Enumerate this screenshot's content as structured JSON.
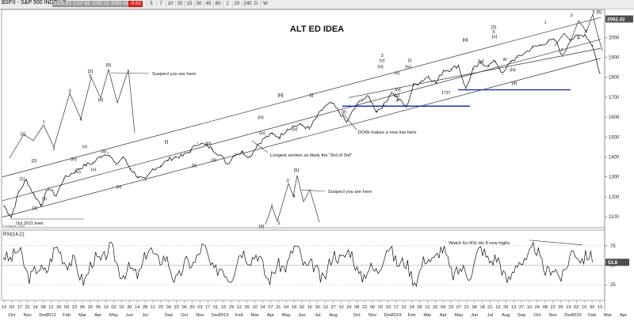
{
  "toolbar": {
    "title": "$SPX - S&P 500 INDEX,D",
    "cells": [
      "5",
      "7",
      "10",
      "20",
      "15",
      "30",
      "45",
      "60",
      "1",
      "20",
      "240",
      "D",
      "W"
    ],
    "badges": [
      {
        "text": "2102.83",
        "color": "#9a9a9a"
      },
      {
        "text": "2107.65",
        "color": "#9a9a9a"
      },
      {
        "text": "2092.33",
        "color": "#9a9a9a"
      },
      {
        "text": "2092.43",
        "color": "#9a9a9a"
      },
      {
        "text": "-9.63",
        "color": "#e01a1a"
      }
    ]
  },
  "colors": {
    "price_line": "#1c1c1c",
    "channel": "#333333",
    "blue_level": "#1a2fbf",
    "last_price_badge": "#4d4d4d"
  },
  "chart_data": [
    {
      "type": "line",
      "title": "ALT ED IDEA",
      "y_ticks": [
        "2000",
        "1900",
        "1800",
        "1700",
        "1600",
        "1500",
        "1400",
        "1300",
        "1200",
        "1100"
      ],
      "ylim": [
        1045,
        2140
      ],
      "last_price": "2092.43",
      "x_ticks": [
        "19",
        "03",
        "17",
        "31",
        "14",
        "28",
        "12",
        "26",
        "09",
        "23",
        "06",
        "20",
        "05",
        "19",
        "02",
        "16",
        "30",
        "14",
        "28",
        "11",
        "25",
        "09",
        "23",
        "06",
        "20",
        "03",
        "17",
        "01",
        "15",
        "29",
        "12",
        "26",
        "10",
        "24",
        "07",
        "21",
        "04",
        "18",
        "02",
        "16",
        "30",
        "13",
        "27",
        "10",
        "24",
        "08",
        "22",
        "06",
        "20",
        "03",
        "17",
        "31",
        "14",
        "28",
        "12",
        "26",
        "09",
        "23",
        "07",
        "21",
        "04",
        "18",
        "01",
        "15",
        "29",
        "13",
        "27",
        "10",
        "24",
        "08",
        "22",
        "05",
        "19",
        "02",
        "16",
        "30",
        "13"
      ],
      "x_months": [
        {
          "i": 1,
          "label": "Oct"
        },
        {
          "i": 3,
          "label": "Nov"
        },
        {
          "i": 5,
          "label": "Dec"
        },
        {
          "i": 6,
          "label": "2012"
        },
        {
          "i": 8,
          "label": "Feb"
        },
        {
          "i": 10,
          "label": "Mar"
        },
        {
          "i": 12,
          "label": "Apr"
        },
        {
          "i": 14,
          "label": "May"
        },
        {
          "i": 16,
          "label": "Jun"
        },
        {
          "i": 18,
          "label": "Jul"
        },
        {
          "i": 21,
          "label": "Sep"
        },
        {
          "i": 23,
          "label": "Oct"
        },
        {
          "i": 25,
          "label": "Nov"
        },
        {
          "i": 27,
          "label": "Dec"
        },
        {
          "i": 28,
          "label": "2013"
        },
        {
          "i": 30,
          "label": "Feb"
        },
        {
          "i": 32,
          "label": "Mar"
        },
        {
          "i": 34,
          "label": "Apr"
        },
        {
          "i": 36,
          "label": "May"
        },
        {
          "i": 38,
          "label": "Jun"
        },
        {
          "i": 40,
          "label": "Jul"
        },
        {
          "i": 42,
          "label": "Aug"
        },
        {
          "i": 45,
          "label": "Oct"
        },
        {
          "i": 47,
          "label": "Nov"
        },
        {
          "i": 49,
          "label": "Dec"
        },
        {
          "i": 50,
          "label": "2014"
        },
        {
          "i": 52,
          "label": "Feb"
        },
        {
          "i": 54,
          "label": "Mar"
        },
        {
          "i": 56,
          "label": "Apr"
        },
        {
          "i": 58,
          "label": "May"
        },
        {
          "i": 60,
          "label": "Jun"
        },
        {
          "i": 62,
          "label": "Jul"
        },
        {
          "i": 64,
          "label": "Aug"
        },
        {
          "i": 66,
          "label": "Sep"
        },
        {
          "i": 68,
          "label": "Oct"
        },
        {
          "i": 70,
          "label": "Nov"
        },
        {
          "i": 72,
          "label": "Dec"
        },
        {
          "i": 73,
          "label": "2015"
        },
        {
          "i": 75,
          "label": "Feb"
        },
        {
          "i": 77,
          "label": "Mar"
        },
        {
          "i": 79,
          "label": "Apr"
        }
      ],
      "x_dates": [
        "2011-09-19",
        "2011-10-03",
        "2011-10-17",
        "2011-10-31",
        "2011-11-14",
        "2011-11-28",
        "2011-12-12",
        "2011-12-26",
        "2012-01-09",
        "2012-01-23",
        "2012-02-06",
        "2012-02-20",
        "2012-03-05",
        "2012-03-19",
        "2012-04-02",
        "2012-04-16",
        "2012-04-30",
        "2012-05-14",
        "2012-05-28",
        "2012-06-11",
        "2012-06-25",
        "2012-07-09",
        "2012-07-23",
        "2012-08-06",
        "2012-08-20",
        "2012-09-03",
        "2012-09-17",
        "2012-10-01",
        "2012-10-15",
        "2012-10-29",
        "2012-11-12",
        "2012-11-26",
        "2012-12-10",
        "2012-12-24",
        "2013-01-07",
        "2013-01-21",
        "2013-02-04",
        "2013-02-18",
        "2013-03-04",
        "2013-03-18",
        "2013-04-01",
        "2013-04-15",
        "2013-04-29",
        "2013-05-13",
        "2013-05-27",
        "2013-06-10",
        "2013-06-24",
        "2013-07-08",
        "2013-07-22",
        "2013-08-05",
        "2013-08-19",
        "2013-09-02",
        "2013-09-16",
        "2013-09-30",
        "2013-10-14",
        "2013-10-28",
        "2013-11-11",
        "2013-11-25",
        "2013-12-09",
        "2013-12-23",
        "2014-01-06",
        "2014-01-20",
        "2014-02-03",
        "2014-02-17",
        "2014-03-03",
        "2014-03-17",
        "2014-03-31",
        "2014-04-14",
        "2014-04-28",
        "2014-05-12",
        "2014-05-26",
        "2014-06-09",
        "2014-06-23",
        "2014-07-07",
        "2014-07-21",
        "2014-08-04",
        "2014-08-18",
        "2014-09-01",
        "2014-09-15",
        "2014-09-29",
        "2014-10-13"
      ],
      "series": [
        {
          "values": [
            [
              "2011-09-19",
              1155
            ],
            [
              "2011-10-03",
              1099
            ],
            [
              "2011-10-17",
              1225
            ],
            [
              "2011-10-31",
              1285
            ],
            [
              "2011-11-14",
              1212
            ],
            [
              "2011-11-28",
              1160
            ],
            [
              "2011-12-12",
              1245
            ],
            [
              "2011-12-26",
              1205
            ],
            [
              "2012-01-09",
              1290
            ],
            [
              "2012-01-23",
              1315
            ],
            [
              "2012-02-06",
              1340
            ],
            [
              "2012-02-20",
              1360
            ],
            [
              "2012-03-05",
              1370
            ],
            [
              "2012-03-19",
              1405
            ],
            [
              "2012-04-02",
              1420
            ],
            [
              "2012-04-16",
              1360
            ],
            [
              "2012-04-30",
              1400
            ],
            [
              "2012-05-14",
              1340
            ],
            [
              "2012-05-28",
              1300
            ],
            [
              "2012-06-11",
              1282
            ],
            [
              "2012-06-25",
              1340
            ],
            [
              "2012-07-09",
              1355
            ],
            [
              "2012-07-23",
              1385
            ],
            [
              "2012-08-06",
              1400
            ],
            [
              "2012-08-20",
              1405
            ],
            [
              "2012-09-03",
              1430
            ],
            [
              "2012-09-17",
              1470
            ],
            [
              "2012-10-01",
              1460
            ],
            [
              "2012-10-15",
              1440
            ],
            [
              "2012-10-29",
              1410
            ],
            [
              "2012-11-12",
              1365
            ],
            [
              "2012-11-26",
              1415
            ],
            [
              "2012-12-10",
              1425
            ],
            [
              "2012-12-24",
              1400
            ],
            [
              "2013-01-07",
              1460
            ],
            [
              "2013-01-21",
              1495
            ],
            [
              "2013-02-04",
              1515
            ],
            [
              "2013-02-18",
              1500
            ],
            [
              "2013-03-04",
              1540
            ],
            [
              "2013-03-18",
              1555
            ],
            [
              "2013-04-01",
              1560
            ],
            [
              "2013-04-15",
              1540
            ],
            [
              "2013-04-29",
              1600
            ],
            [
              "2013-05-13",
              1650
            ],
            [
              "2013-05-27",
              1670
            ],
            [
              "2013-06-10",
              1625
            ],
            [
              "2013-06-24",
              1573
            ],
            [
              "2013-07-08",
              1640
            ],
            [
              "2013-07-22",
              1690
            ],
            [
              "2013-08-05",
              1700
            ],
            [
              "2013-08-19",
              1630
            ],
            [
              "2013-09-02",
              1660
            ],
            [
              "2013-09-16",
              1725
            ],
            [
              "2013-09-30",
              1690
            ],
            [
              "2013-10-14",
              1650
            ],
            [
              "2013-10-28",
              1760
            ],
            [
              "2013-11-11",
              1780
            ],
            [
              "2013-11-25",
              1805
            ],
            [
              "2013-12-09",
              1770
            ],
            [
              "2013-12-23",
              1835
            ],
            [
              "2014-01-06",
              1840
            ],
            [
              "2014-01-20",
              1860
            ],
            [
              "2014-02-03",
              1742
            ],
            [
              "2014-02-17",
              1840
            ],
            [
              "2014-03-03",
              1870
            ],
            [
              "2014-03-17",
              1860
            ],
            [
              "2014-03-31",
              1880
            ],
            [
              "2014-04-14",
              1815
            ],
            [
              "2014-04-28",
              1880
            ],
            [
              "2014-05-12",
              1900
            ],
            [
              "2014-05-26",
              1925
            ],
            [
              "2014-06-09",
              1950
            ],
            [
              "2014-06-23",
              1960
            ],
            [
              "2014-07-07",
              1980
            ],
            [
              "2014-07-21",
              1985
            ],
            [
              "2014-08-04",
              1905
            ],
            [
              "2014-08-18",
              1990
            ],
            [
              "2014-09-01",
              2005
            ],
            [
              "2014-09-15",
              2015
            ],
            [
              "2014-09-29",
              1960
            ],
            [
              "2014-10-13",
              1820
            ]
          ]
        }
      ],
      "labels": [
        "[1]",
        "[2]",
        "1",
        "2",
        "3",
        "4",
        "[3]",
        "5",
        "[4]",
        "[5]",
        "[i]",
        "[ii]",
        "[iii]",
        "[iv]",
        "[v]",
        "(iii)",
        "(iv)",
        "(v)",
        "(i)",
        "(ii)",
        "(a)",
        "(b)",
        "(c)",
        "i",
        "ii",
        "iii",
        "iv",
        "v",
        "W",
        "X",
        "[c]"
      ],
      "annotations": [
        "Suspect you are here",
        "DOW makes a new low here",
        "Longest section so likely the \"3rd of 3rd\"",
        "Oct 2011 lows",
        "1737"
      ]
    },
    {
      "type": "line",
      "title": "RSI(14,C)",
      "y_ticks": [
        "75",
        "50",
        "25"
      ],
      "ylim": [
        5,
        95
      ],
      "last_value": "53.8",
      "annotations": [
        "Watch for RSI div if new highs"
      ]
    }
  ],
  "footer": "© eSignal, 2015"
}
